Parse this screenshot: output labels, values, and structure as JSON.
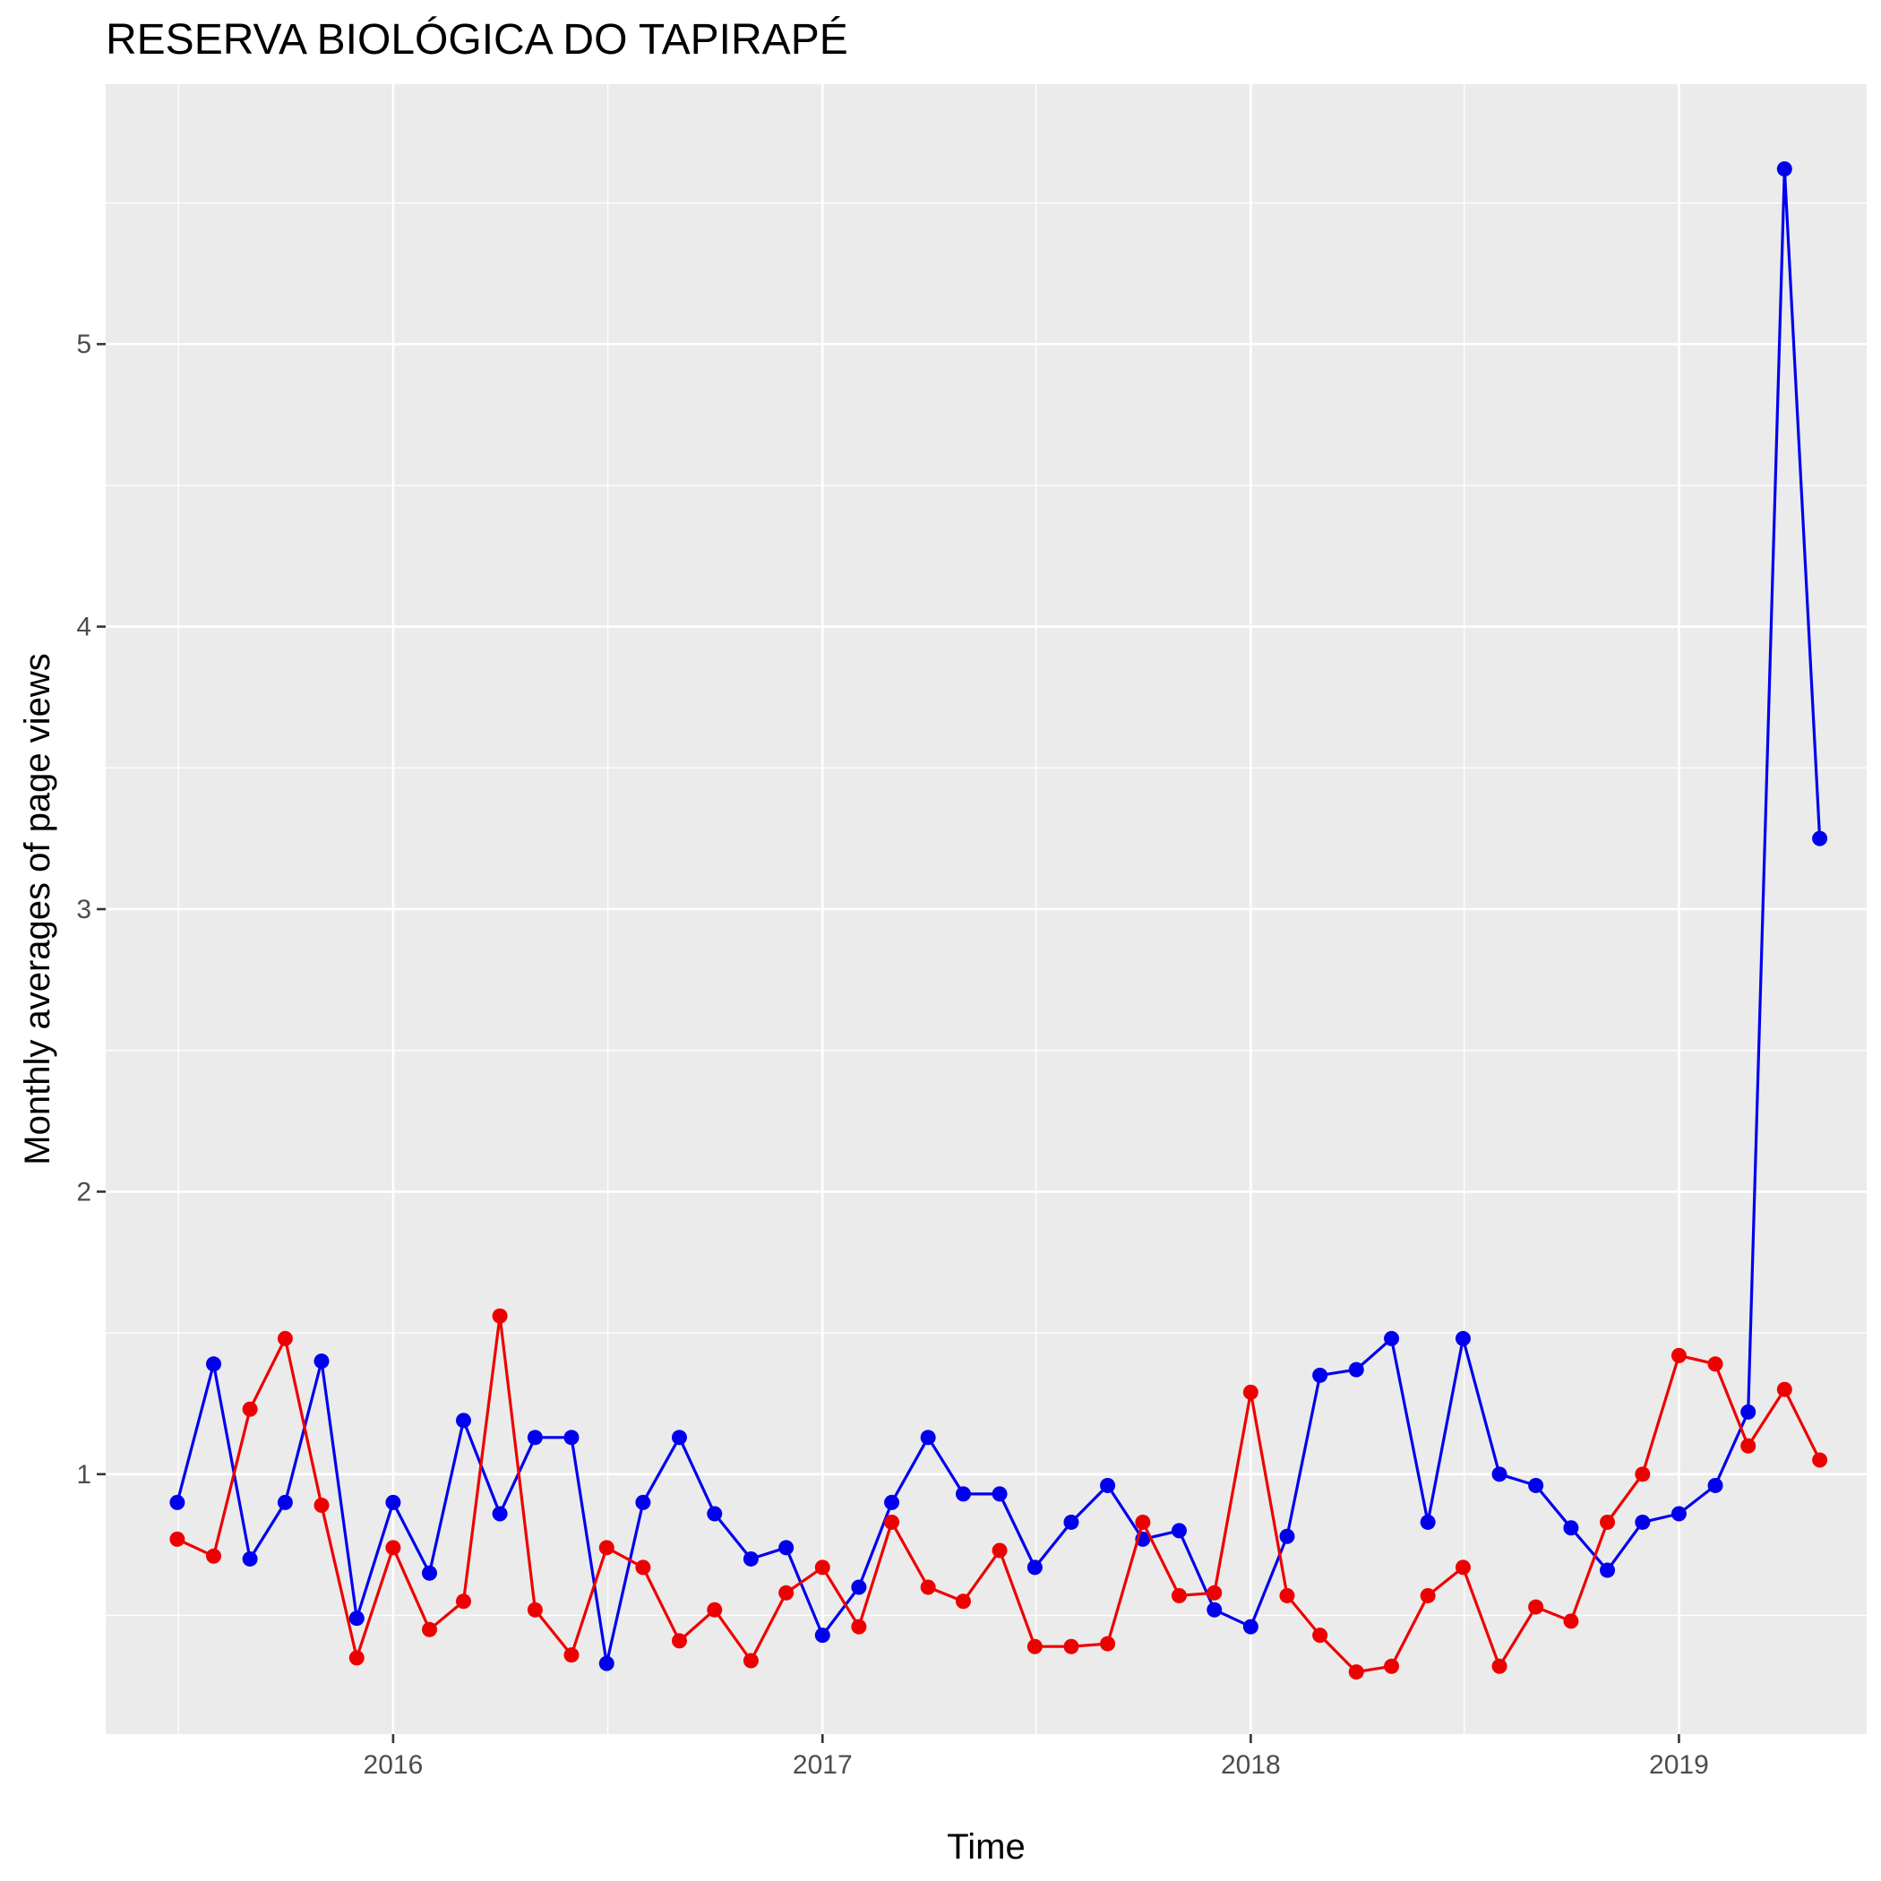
{
  "chart_data": {
    "type": "line",
    "title": "RESERVA BIOLÓGICA DO TAPIRAPÉ",
    "xlabel": "Time",
    "ylabel": "Monthly averages of page views",
    "xlim": [
      "2015-05-01",
      "2019-06-10"
    ],
    "ylim": [
      0.08,
      5.92
    ],
    "x_ticks": [
      {
        "date": "2016-01-01",
        "label": "2016"
      },
      {
        "date": "2017-01-01",
        "label": "2017"
      },
      {
        "date": "2018-01-01",
        "label": "2018"
      },
      {
        "date": "2019-01-01",
        "label": "2019"
      }
    ],
    "y_ticks": [
      1,
      2,
      3,
      4,
      5
    ],
    "grid": true,
    "legend": "none",
    "x": [
      "2015-07-01",
      "2015-08-01",
      "2015-09-01",
      "2015-10-01",
      "2015-11-01",
      "2015-12-01",
      "2016-01-01",
      "2016-02-01",
      "2016-03-01",
      "2016-04-01",
      "2016-05-01",
      "2016-06-01",
      "2016-07-01",
      "2016-08-01",
      "2016-09-01",
      "2016-10-01",
      "2016-11-01",
      "2016-12-01",
      "2017-01-01",
      "2017-02-01",
      "2017-03-01",
      "2017-04-01",
      "2017-05-01",
      "2017-06-01",
      "2017-07-01",
      "2017-08-01",
      "2017-09-01",
      "2017-10-01",
      "2017-11-01",
      "2017-12-01",
      "2018-01-01",
      "2018-02-01",
      "2018-03-01",
      "2018-04-01",
      "2018-05-01",
      "2018-06-01",
      "2018-07-01",
      "2018-08-01",
      "2018-09-01",
      "2018-10-01",
      "2018-11-01",
      "2018-12-01",
      "2019-01-01",
      "2019-02-01",
      "2019-03-01",
      "2019-04-01",
      "2019-05-01"
    ],
    "series": [
      {
        "color": "#0000ee",
        "values": [
          0.9,
          1.39,
          0.7,
          0.9,
          1.4,
          0.49,
          0.9,
          0.65,
          1.19,
          0.86,
          1.13,
          1.13,
          0.33,
          0.9,
          1.13,
          0.86,
          0.7,
          0.74,
          0.43,
          0.6,
          0.9,
          1.13,
          0.93,
          0.93,
          0.67,
          0.83,
          0.96,
          0.77,
          0.8,
          0.52,
          0.46,
          0.78,
          1.35,
          1.37,
          1.48,
          0.83,
          1.48,
          1.0,
          0.96,
          0.81,
          0.66,
          0.83,
          0.86,
          0.96,
          1.22,
          5.62,
          3.25
        ]
      },
      {
        "color": "#ee0000",
        "values": [
          0.77,
          0.71,
          1.23,
          1.48,
          0.89,
          0.35,
          0.74,
          0.45,
          0.55,
          1.56,
          0.52,
          0.36,
          0.74,
          0.67,
          0.41,
          0.52,
          0.34,
          0.58,
          0.67,
          0.46,
          0.83,
          0.6,
          0.55,
          0.73,
          0.39,
          0.39,
          0.4,
          0.83,
          0.57,
          0.58,
          1.29,
          0.57,
          0.43,
          0.3,
          0.32,
          0.57,
          0.67,
          0.32,
          0.53,
          0.48,
          0.83,
          1.0,
          1.42,
          1.39,
          1.1,
          1.3,
          1.05
        ]
      }
    ]
  }
}
